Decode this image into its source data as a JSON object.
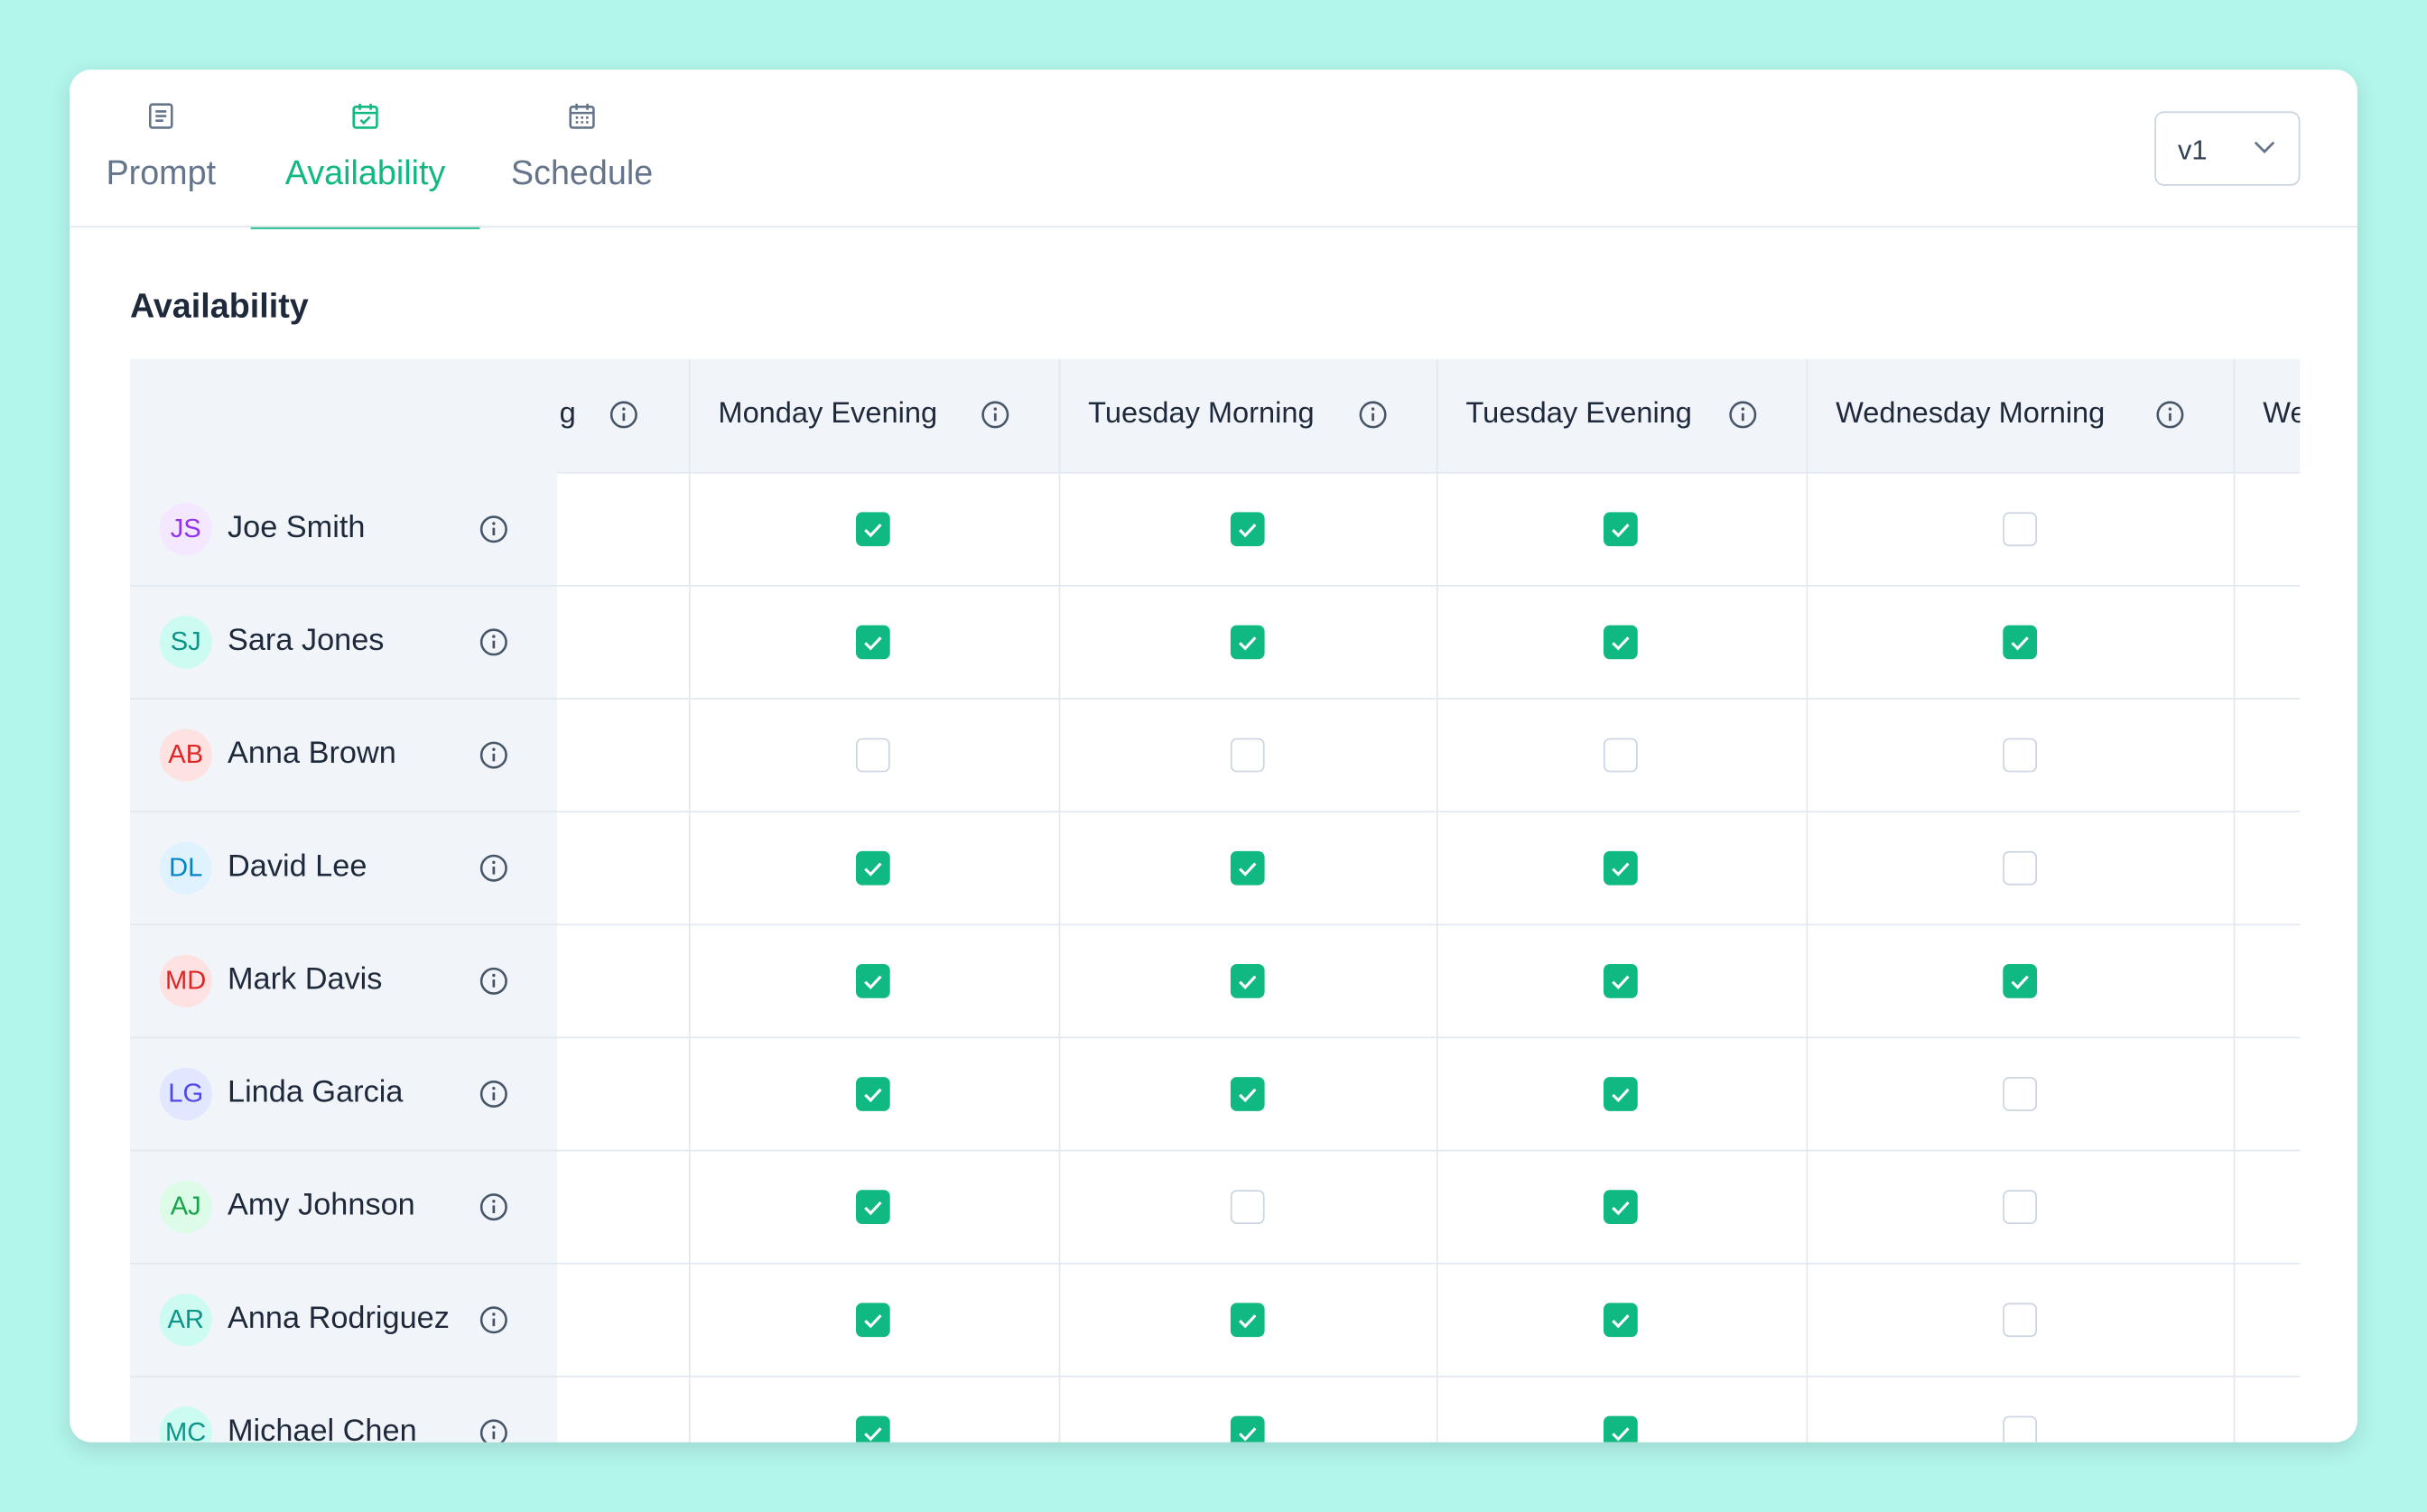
{
  "tabs": [
    "Prompt",
    "Availability",
    "Schedule"
  ],
  "version": "v1",
  "section_title": "Availability",
  "table": {
    "columns": [
      "g",
      "Monday Evening",
      "Tuesday Morning",
      "Tuesday Evening",
      "Wednesday Morning",
      "We"
    ],
    "rows": [
      {
        "initials": "JS",
        "name": "Joe Smith",
        "availability": [
          true,
          true,
          true,
          false
        ]
      },
      {
        "initials": "SJ",
        "name": "Sara Jones",
        "availability": [
          true,
          true,
          true,
          true
        ]
      },
      {
        "initials": "AB",
        "name": "Anna Brown",
        "availability": [
          false,
          false,
          false,
          false
        ]
      },
      {
        "initials": "DL",
        "name": "David Lee",
        "availability": [
          true,
          true,
          true,
          false
        ]
      },
      {
        "initials": "MD",
        "name": "Mark Davis",
        "availability": [
          true,
          true,
          true,
          true
        ]
      },
      {
        "initials": "LG",
        "name": "Linda Garcia",
        "availability": [
          true,
          true,
          true,
          false
        ]
      },
      {
        "initials": "AJ",
        "name": "Amy Johnson",
        "availability": [
          true,
          false,
          true,
          false
        ]
      },
      {
        "initials": "AR",
        "name": "Anna Rodriguez",
        "availability": [
          true,
          true,
          true,
          false
        ]
      },
      {
        "initials": "MC",
        "name": "Michael Chen",
        "availability": [
          true,
          true,
          true,
          false
        ]
      }
    ]
  }
}
